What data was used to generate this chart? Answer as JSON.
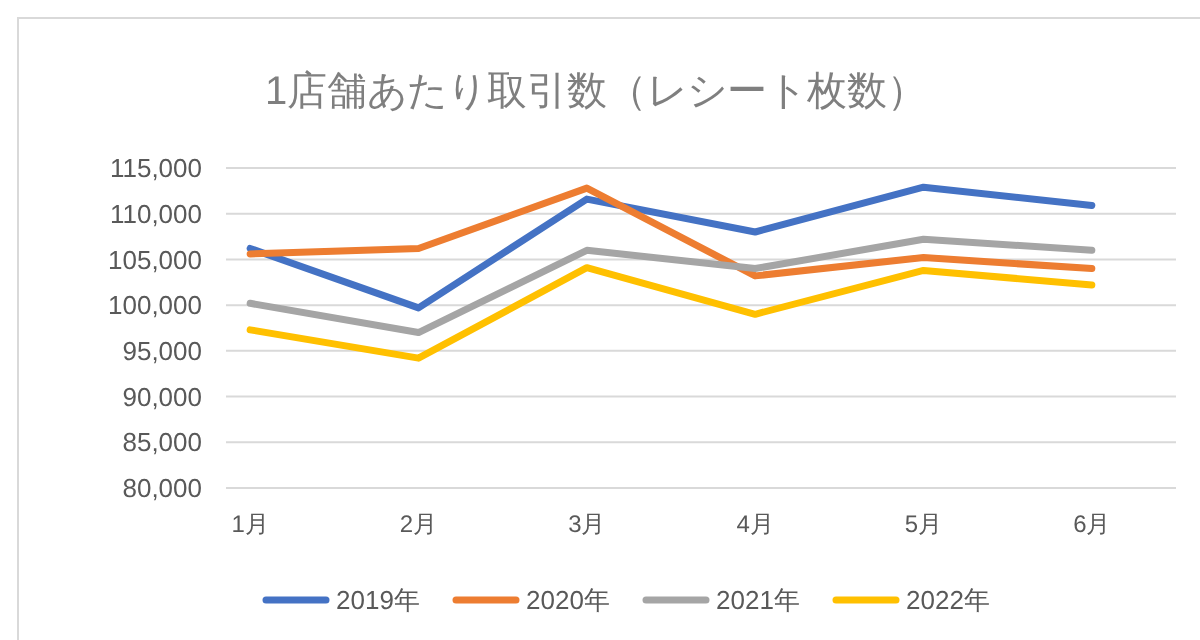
{
  "chart_data": {
    "type": "line",
    "title": "1店舗あたり取引数（レシート枚数）",
    "categories": [
      "1月",
      "2月",
      "3月",
      "4月",
      "5月",
      "6月"
    ],
    "series": [
      {
        "name": "2019年",
        "color": "#4472c4",
        "values": [
          106200,
          99700,
          111600,
          108000,
          112900,
          110900
        ]
      },
      {
        "name": "2020年",
        "color": "#ed7d31",
        "values": [
          105600,
          106200,
          112800,
          103200,
          105200,
          104000
        ]
      },
      {
        "name": "2021年",
        "color": "#a5a5a5",
        "values": [
          100200,
          97000,
          106000,
          104000,
          107200,
          106000
        ]
      },
      {
        "name": "2022年",
        "color": "#ffc000",
        "values": [
          97300,
          94200,
          104100,
          99000,
          103800,
          102200
        ]
      }
    ],
    "ylim": [
      80000,
      115000
    ],
    "yticks": [
      {
        "value": 80000,
        "label": "80,000"
      },
      {
        "value": 85000,
        "label": "85,000"
      },
      {
        "value": 90000,
        "label": "90,000"
      },
      {
        "value": 95000,
        "label": "95,000"
      },
      {
        "value": 100000,
        "label": "100,000"
      },
      {
        "value": 105000,
        "label": "105,000"
      },
      {
        "value": 110000,
        "label": "110,000"
      },
      {
        "value": 115000,
        "label": "115,000"
      }
    ],
    "grid": "y",
    "legend": "bottom",
    "marker": "none",
    "line_style": "solid"
  }
}
